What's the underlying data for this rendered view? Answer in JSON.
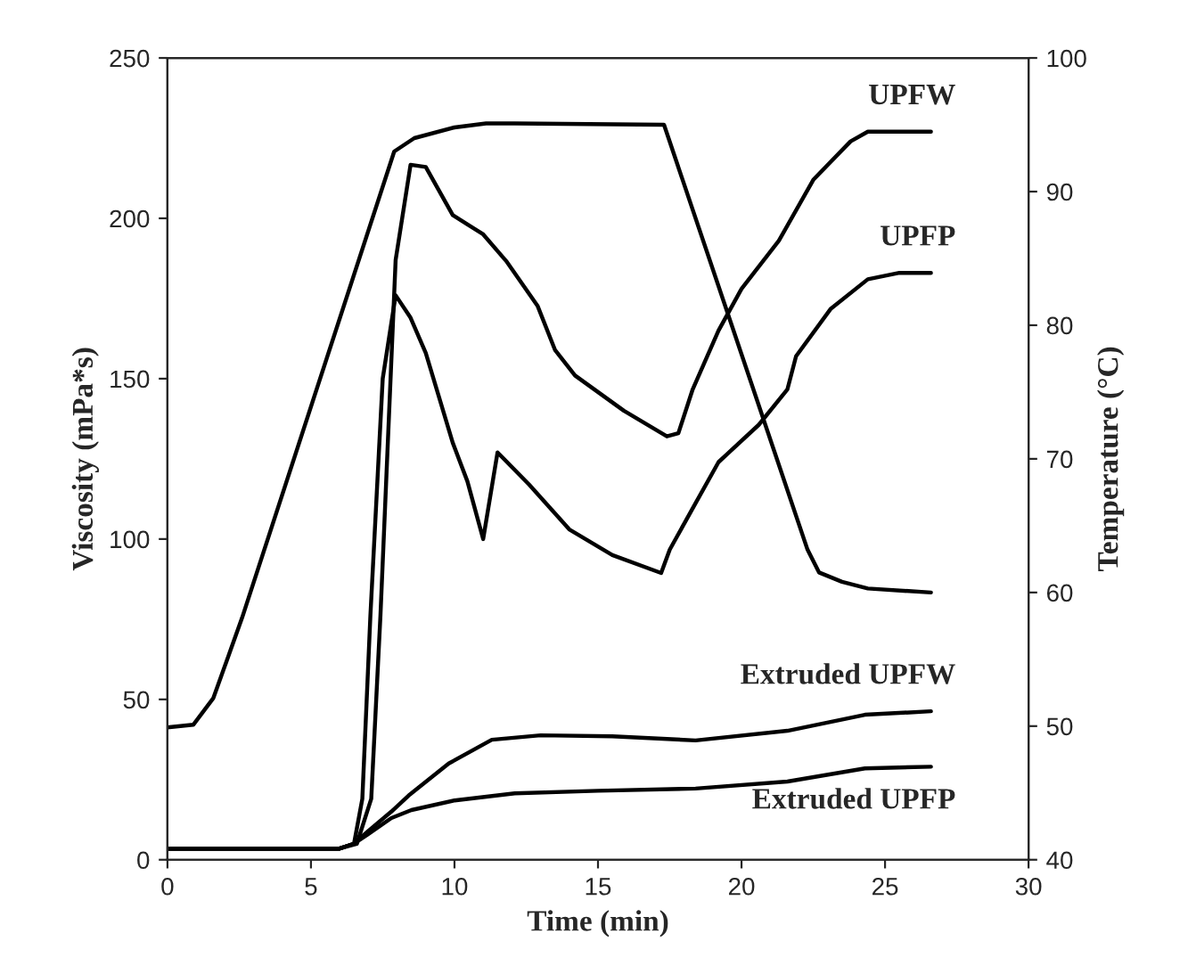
{
  "chart_data": {
    "type": "line",
    "xlabel": "Time (min)",
    "ylabel": "Viscosity (mPa*s)",
    "y2label": "Temperature (°C)",
    "xlim": [
      0,
      30
    ],
    "xticks": [
      0,
      5,
      10,
      15,
      20,
      25,
      30
    ],
    "ylim": [
      0,
      250
    ],
    "yticks": [
      0,
      50,
      100,
      150,
      200,
      250
    ],
    "y2lim": [
      40,
      100
    ],
    "y2ticks": [
      40,
      50,
      60,
      70,
      80,
      90,
      100
    ],
    "grid": false,
    "marker": "none",
    "line_style": "solid",
    "series": [
      {
        "name": "UPFW",
        "color": "#000000",
        "x": [
          0,
          3,
          6.0,
          6.6,
          7.1,
          7.42,
          7.95,
          8.47,
          9.0,
          9.94,
          11.0,
          11.8,
          12.9,
          13.5,
          14.2,
          15.9,
          17.4,
          17.8,
          18.3,
          19.2,
          20.0,
          21.3,
          22.5,
          23.8,
          24.4,
          25.9,
          26.6
        ],
        "values": [
          3.5,
          3.5,
          3.5,
          5,
          19,
          76,
          187,
          216.7,
          216,
          201,
          195,
          186.7,
          172.6,
          159,
          151,
          140,
          132,
          133,
          146.7,
          165,
          178,
          193,
          212,
          224,
          227,
          227,
          227
        ]
      },
      {
        "name": "UPFP",
        "color": "#000000",
        "x": [
          0,
          3,
          6.0,
          6.5,
          6.79,
          7.07,
          7.5,
          7.95,
          8.47,
          9.0,
          9.94,
          10.45,
          11.0,
          11.5,
          12.6,
          14.0,
          15.5,
          17.2,
          17.5,
          18.3,
          19.2,
          20.6,
          21.6,
          21.9,
          23.1,
          24.4,
          25.5,
          26.6
        ],
        "values": [
          3.5,
          3.5,
          3.5,
          5,
          19,
          76,
          150,
          176,
          169,
          158,
          130,
          118,
          100,
          127,
          117,
          103,
          95,
          89.4,
          96.7,
          109.6,
          124,
          135.6,
          146.7,
          157,
          171.7,
          181,
          183,
          183
        ]
      },
      {
        "name": "Extruded UPFW",
        "color": "#000000",
        "x": [
          0,
          3,
          6.0,
          6.5,
          7.0,
          7.8,
          8.4,
          9.8,
          11.3,
          13.0,
          15.5,
          18.4,
          21.6,
          24.3,
          26.6
        ],
        "values": [
          3.5,
          3.5,
          3.5,
          5,
          9,
          15,
          20,
          30,
          37.4,
          38.8,
          38.5,
          37.2,
          40.2,
          45.2,
          46.3
        ]
      },
      {
        "name": "Extruded UPFP",
        "color": "#000000",
        "x": [
          0,
          3,
          6.0,
          6.5,
          7.0,
          7.8,
          8.5,
          10.0,
          12.1,
          15.0,
          18.4,
          21.6,
          24.3,
          26.6
        ],
        "values": [
          3.5,
          3.5,
          3.5,
          5,
          8,
          13,
          15.5,
          18.5,
          20.7,
          21.5,
          22.2,
          24.4,
          28.5,
          29
        ]
      },
      {
        "axis": "y2",
        "color": "#000000",
        "x": [
          0,
          0.9,
          1.6,
          2.6,
          7.9,
          8.6,
          10.0,
          11.1,
          12.1,
          17.3,
          22.3,
          22.7,
          23.5,
          24.4,
          26.6
        ],
        "values": [
          49.9,
          50.1,
          52.1,
          58.1,
          93.0,
          94.0,
          94.8,
          95.1,
          95.1,
          95.0,
          63.2,
          61.5,
          60.8,
          60.3,
          60.0
        ]
      }
    ]
  }
}
